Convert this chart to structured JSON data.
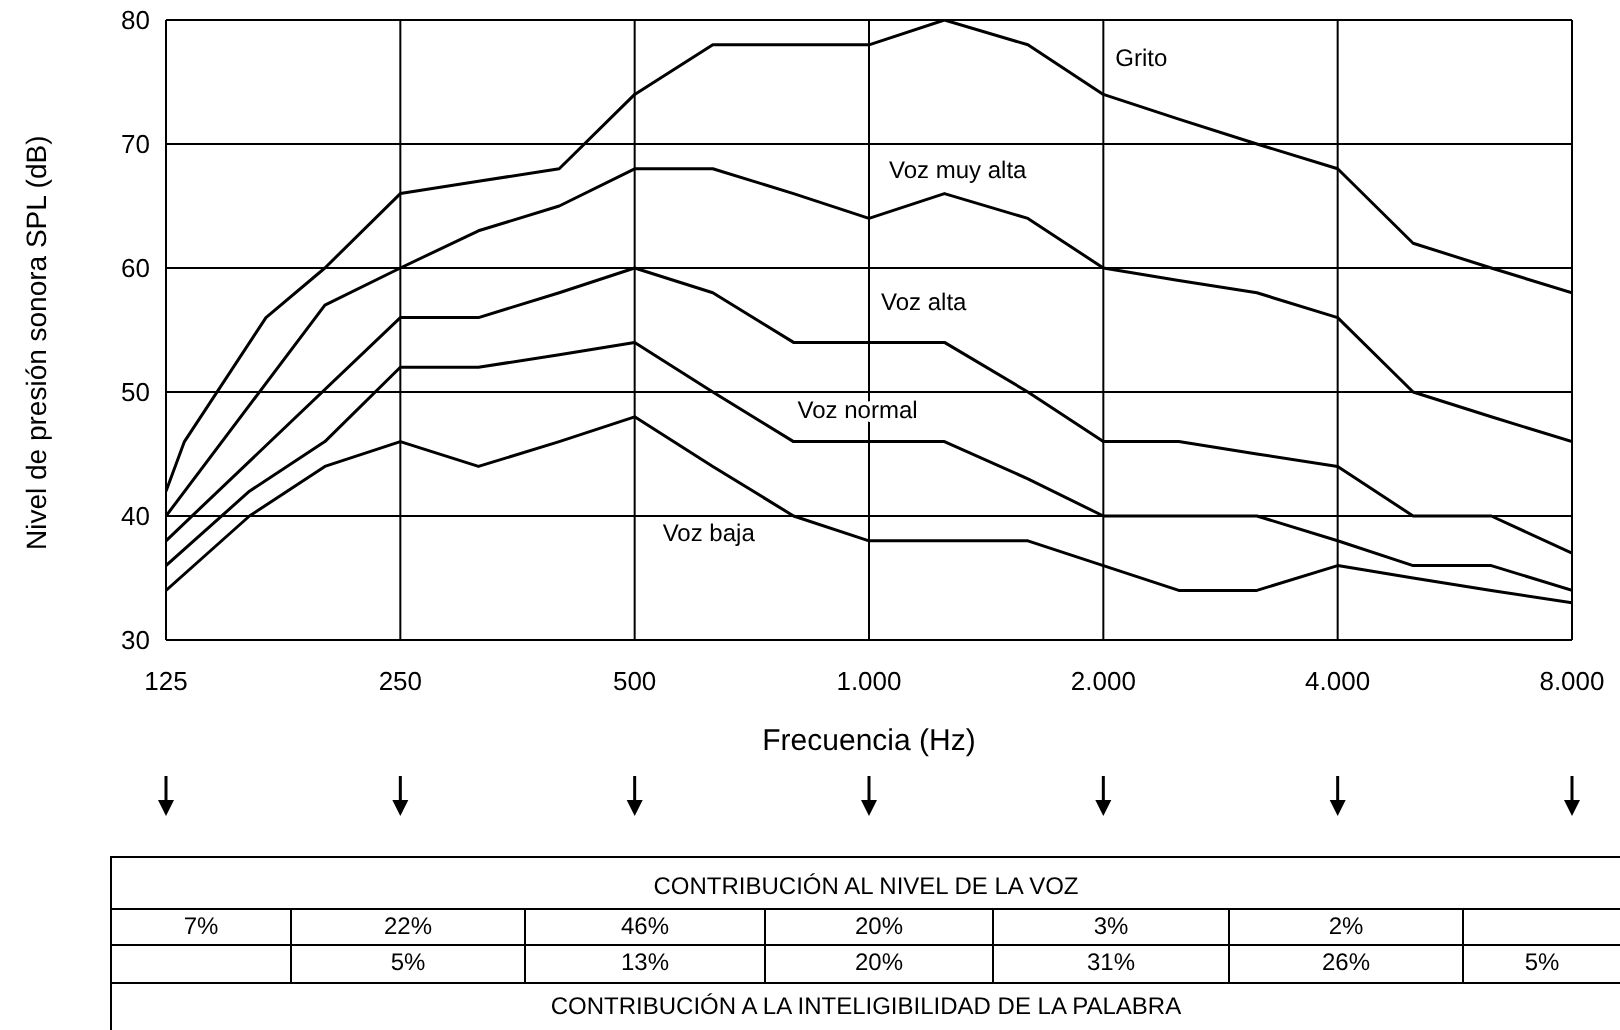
{
  "chart_data": {
    "type": "line",
    "xlabel": "Frecuencia (Hz)",
    "ylabel": "Nivel de presión sonora SPL  (dB)",
    "log": "x",
    "xlim": [
      125,
      8000
    ],
    "xticks": [
      125,
      250,
      500,
      {
        "value": 1000,
        "label": "1.000"
      },
      {
        "value": 2000,
        "label": "2.000"
      },
      {
        "value": 4000,
        "label": "4.000"
      },
      {
        "value": 8000,
        "label": "8.000"
      }
    ],
    "ylim": [
      30,
      80
    ],
    "yticks": [
      30,
      40,
      50,
      60,
      70,
      80
    ],
    "grid": true,
    "legend": false,
    "marker": "none",
    "line_style": "solid",
    "series": [
      {
        "name": "Grito",
        "color": "#000000",
        "x": [
          125,
          132,
          168,
          200,
          250,
          315,
          400,
          500,
          630,
          800,
          1000,
          1250,
          1600,
          2000,
          2500,
          3150,
          4000,
          5000,
          6300,
          8000
        ],
        "values": [
          42,
          46,
          56,
          60,
          66,
          67,
          68,
          74,
          78,
          78,
          78,
          80,
          78,
          74,
          72,
          70,
          68,
          62,
          60,
          58
        ]
      },
      {
        "name": "Voz muy alta",
        "color": "#000000",
        "x": [
          125,
          200,
          250,
          315,
          400,
          500,
          630,
          800,
          1000,
          1250,
          1600,
          2000,
          2500,
          3150,
          4000,
          5000,
          6300,
          8000
        ],
        "values": [
          40,
          57,
          60,
          63,
          65,
          68,
          68,
          66,
          64,
          66,
          64,
          60,
          59,
          58,
          56,
          50,
          48,
          46
        ]
      },
      {
        "name": "Voz alta",
        "color": "#000000",
        "x": [
          125,
          250,
          315,
          400,
          500,
          630,
          800,
          1000,
          1250,
          1600,
          2000,
          2500,
          3150,
          4000,
          5000,
          6300,
          8000
        ],
        "values": [
          38,
          56,
          56,
          58,
          60,
          58,
          54,
          54,
          54,
          50,
          46,
          46,
          45,
          44,
          40,
          40,
          37
        ]
      },
      {
        "name": "Voz normal",
        "color": "#000000",
        "x": [
          125,
          160,
          200,
          250,
          315,
          400,
          500,
          630,
          800,
          1000,
          1250,
          1600,
          2000,
          2500,
          3150,
          4000,
          5000,
          6300,
          8000
        ],
        "values": [
          36,
          42,
          46,
          52,
          52,
          53,
          54,
          50,
          46,
          46,
          46,
          43,
          40,
          40,
          40,
          38,
          36,
          36,
          34
        ]
      },
      {
        "name": "Voz baja",
        "color": "#000000",
        "x": [
          125,
          160,
          200,
          250,
          315,
          400,
          500,
          630,
          800,
          1000,
          1250,
          1600,
          2000,
          2500,
          3150,
          4000,
          5000,
          6300,
          8000
        ],
        "values": [
          34,
          40,
          44,
          46,
          44,
          46,
          48,
          44,
          40,
          38,
          38,
          38,
          36,
          34,
          34,
          36,
          35,
          34,
          33
        ]
      }
    ],
    "annotations": [
      "CONTRIBUCIÓN AL NIVEL DE LA VOZ",
      "7%",
      "22%",
      "46%",
      "20%",
      "3%",
      "2%",
      "5%",
      "13%",
      "20%",
      "31%",
      "26%",
      "5%",
      "CONTRIBUCIÓN A LA INTELIGIBILIDAD DE LA PALABRA"
    ]
  }
}
